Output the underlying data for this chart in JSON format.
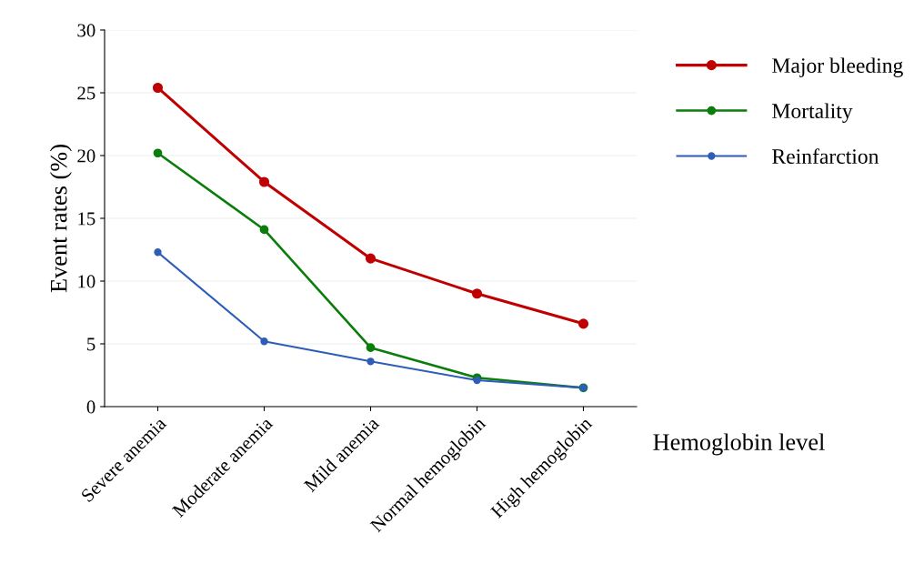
{
  "chart_data": {
    "type": "line",
    "xlabel": "Hemoglobin level",
    "ylabel": "Event rates (%)",
    "categories": [
      "Severe anemia",
      "Moderate anemia",
      "Mild anemia",
      "Normal hemoglobin",
      "High hemoglobin"
    ],
    "series": [
      {
        "name": "Major bleeding",
        "color": "#c00000",
        "values": [
          25.4,
          17.9,
          11.8,
          9.0,
          6.6
        ]
      },
      {
        "name": "Mortality",
        "color": "#0a7d0a",
        "values": [
          20.2,
          14.1,
          4.7,
          2.3,
          1.5
        ]
      },
      {
        "name": "Reinfarction",
        "color": "#2e5db8",
        "values": [
          12.3,
          5.2,
          3.6,
          2.1,
          1.5
        ]
      }
    ],
    "ylim": [
      0,
      30
    ],
    "yticks": [
      0,
      5,
      10,
      15,
      20,
      25,
      30
    ],
    "grid": "y",
    "legend": "right",
    "marker": "circle",
    "line_style": "solid"
  }
}
